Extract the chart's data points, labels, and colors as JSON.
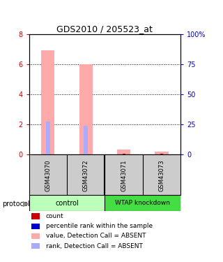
{
  "title": "GDS2010 / 205523_at",
  "samples": [
    "GSM43070",
    "GSM43072",
    "GSM43071",
    "GSM43073"
  ],
  "groups": [
    {
      "label": "control",
      "color": "#bbffbb",
      "indices": [
        0,
        1
      ]
    },
    {
      "label": "WTAP knockdown",
      "color": "#44dd44",
      "indices": [
        2,
        3
      ]
    }
  ],
  "bar_values": [
    6.9,
    6.0,
    0.35,
    0.2
  ],
  "bar_color": "#ffaaaa",
  "rank_values": [
    2.2,
    1.9,
    0.0,
    0.0
  ],
  "rank_color": "#aaaaff",
  "count_values": [
    0.08,
    0.08,
    0.08,
    0.08
  ],
  "count_color": "#cc0000",
  "ylim": [
    0,
    8
  ],
  "yticks": [
    0,
    2,
    4,
    6,
    8
  ],
  "y2ticks": [
    0,
    25,
    50,
    75,
    100
  ],
  "y2labels": [
    "0",
    "25",
    "50",
    "75",
    "100%"
  ],
  "left_tick_color": "#cc0000",
  "right_tick_color": "#0000cc",
  "sample_box_color": "#cccccc",
  "legend_items": [
    {
      "color": "#cc0000",
      "label": "count"
    },
    {
      "color": "#0000cc",
      "label": "percentile rank within the sample"
    },
    {
      "color": "#ffaaaa",
      "label": "value, Detection Call = ABSENT"
    },
    {
      "color": "#aaaaff",
      "label": "rank, Detection Call = ABSENT"
    }
  ]
}
